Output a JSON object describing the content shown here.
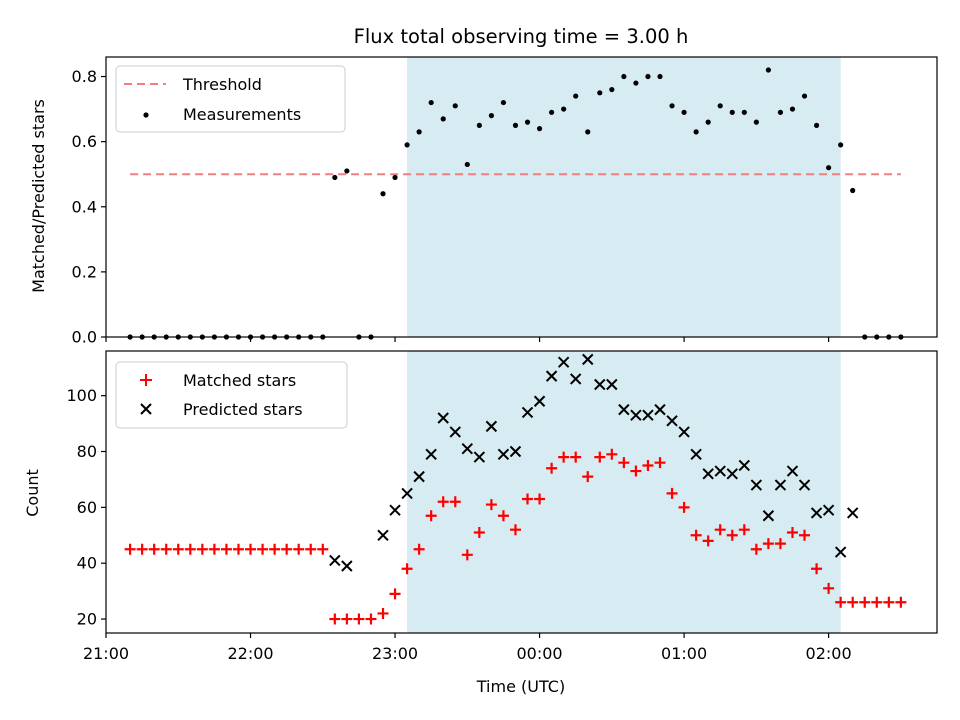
{
  "chart_data": [
    {
      "type": "scatter",
      "title": "Flux total observing time = 3.00 h",
      "ylabel": "Matched/Predicted stars",
      "xlabel": "",
      "x_axis": "time (UTC), labels as HH:MM",
      "xlim": [
        "21:00",
        "02:45"
      ],
      "ylim": [
        0,
        0.86
      ],
      "yticks": [
        "0.0",
        "0.2",
        "0.4",
        "0.6",
        "0.8"
      ],
      "shaded_region": {
        "start": "23:05",
        "end": "02:05",
        "color": "#add8e6"
      },
      "legend": {
        "position": "top-left",
        "entries": [
          "Threshold",
          "Measurements"
        ]
      },
      "threshold": {
        "name": "Threshold",
        "value": 0.5,
        "x_start": "21:10",
        "x_end": "02:30",
        "color": "#f08080"
      },
      "series": [
        {
          "name": "Measurements",
          "color": "#000000",
          "marker": "dot",
          "points": [
            [
              "21:10",
              0
            ],
            [
              "21:15",
              0
            ],
            [
              "21:20",
              0
            ],
            [
              "21:25",
              0
            ],
            [
              "21:30",
              0
            ],
            [
              "21:35",
              0
            ],
            [
              "21:40",
              0
            ],
            [
              "21:45",
              0
            ],
            [
              "21:50",
              0
            ],
            [
              "21:55",
              0
            ],
            [
              "22:00",
              0
            ],
            [
              "22:05",
              0
            ],
            [
              "22:10",
              0
            ],
            [
              "22:15",
              0
            ],
            [
              "22:20",
              0
            ],
            [
              "22:25",
              0
            ],
            [
              "22:30",
              0
            ],
            [
              "22:35",
              0.49
            ],
            [
              "22:40",
              0.51
            ],
            [
              "22:45",
              0
            ],
            [
              "22:50",
              0
            ],
            [
              "22:55",
              0.44
            ],
            [
              "23:00",
              0.49
            ],
            [
              "23:05",
              0.59
            ],
            [
              "23:10",
              0.63
            ],
            [
              "23:15",
              0.72
            ],
            [
              "23:20",
              0.67
            ],
            [
              "23:25",
              0.71
            ],
            [
              "23:30",
              0.53
            ],
            [
              "23:35",
              0.65
            ],
            [
              "23:40",
              0.68
            ],
            [
              "23:45",
              0.72
            ],
            [
              "23:50",
              0.65
            ],
            [
              "23:55",
              0.66
            ],
            [
              "00:00",
              0.64
            ],
            [
              "00:05",
              0.69
            ],
            [
              "00:10",
              0.7
            ],
            [
              "00:15",
              0.74
            ],
            [
              "00:20",
              0.63
            ],
            [
              "00:25",
              0.75
            ],
            [
              "00:30",
              0.76
            ],
            [
              "00:35",
              0.8
            ],
            [
              "00:40",
              0.78
            ],
            [
              "00:45",
              0.8
            ],
            [
              "00:50",
              0.8
            ],
            [
              "00:55",
              0.71
            ],
            [
              "01:00",
              0.69
            ],
            [
              "01:05",
              0.63
            ],
            [
              "01:10",
              0.66
            ],
            [
              "01:15",
              0.71
            ],
            [
              "01:20",
              0.69
            ],
            [
              "01:25",
              0.69
            ],
            [
              "01:30",
              0.66
            ],
            [
              "01:35",
              0.82
            ],
            [
              "01:40",
              0.69
            ],
            [
              "01:45",
              0.7
            ],
            [
              "01:50",
              0.74
            ],
            [
              "01:55",
              0.65
            ],
            [
              "02:00",
              0.52
            ],
            [
              "02:05",
              0.59
            ],
            [
              "02:10",
              0.45
            ],
            [
              "02:15",
              0
            ],
            [
              "02:20",
              0
            ],
            [
              "02:25",
              0
            ],
            [
              "02:30",
              0
            ]
          ]
        }
      ]
    },
    {
      "type": "scatter",
      "title": "",
      "ylabel": "Count",
      "xlabel": "Time (UTC)",
      "x_axis": "time (UTC), labels as HH:MM",
      "xlim": [
        "21:00",
        "02:45"
      ],
      "ylim": [
        15,
        116
      ],
      "yticks": [
        "20",
        "40",
        "60",
        "80",
        "100"
      ],
      "xticks": [
        "21:00",
        "22:00",
        "23:00",
        "00:00",
        "01:00",
        "02:00"
      ],
      "shaded_region": {
        "start": "23:05",
        "end": "02:05",
        "color": "#add8e6"
      },
      "legend": {
        "position": "top-left",
        "entries": [
          "Matched stars",
          "Predicted stars"
        ]
      },
      "series": [
        {
          "name": "Matched stars",
          "color": "#ff0000",
          "marker": "plus",
          "points": [
            [
              "21:10",
              45
            ],
            [
              "21:15",
              45
            ],
            [
              "21:20",
              45
            ],
            [
              "21:25",
              45
            ],
            [
              "21:30",
              45
            ],
            [
              "21:35",
              45
            ],
            [
              "21:40",
              45
            ],
            [
              "21:45",
              45
            ],
            [
              "21:50",
              45
            ],
            [
              "21:55",
              45
            ],
            [
              "22:00",
              45
            ],
            [
              "22:05",
              45
            ],
            [
              "22:10",
              45
            ],
            [
              "22:15",
              45
            ],
            [
              "22:20",
              45
            ],
            [
              "22:25",
              45
            ],
            [
              "22:30",
              45
            ],
            [
              "22:35",
              20
            ],
            [
              "22:40",
              20
            ],
            [
              "22:45",
              20
            ],
            [
              "22:50",
              20
            ],
            [
              "22:55",
              22
            ],
            [
              "23:00",
              29
            ],
            [
              "23:05",
              38
            ],
            [
              "23:10",
              45
            ],
            [
              "23:15",
              57
            ],
            [
              "23:20",
              62
            ],
            [
              "23:25",
              62
            ],
            [
              "23:30",
              43
            ],
            [
              "23:35",
              51
            ],
            [
              "23:40",
              61
            ],
            [
              "23:45",
              57
            ],
            [
              "23:50",
              52
            ],
            [
              "23:55",
              63
            ],
            [
              "00:00",
              63
            ],
            [
              "00:05",
              74
            ],
            [
              "00:10",
              78
            ],
            [
              "00:15",
              78
            ],
            [
              "00:20",
              71
            ],
            [
              "00:25",
              78
            ],
            [
              "00:30",
              79
            ],
            [
              "00:35",
              76
            ],
            [
              "00:40",
              73
            ],
            [
              "00:45",
              75
            ],
            [
              "00:50",
              76
            ],
            [
              "00:55",
              65
            ],
            [
              "01:00",
              60
            ],
            [
              "01:05",
              50
            ],
            [
              "01:10",
              48
            ],
            [
              "01:15",
              52
            ],
            [
              "01:20",
              50
            ],
            [
              "01:25",
              52
            ],
            [
              "01:30",
              45
            ],
            [
              "01:35",
              47
            ],
            [
              "01:40",
              47
            ],
            [
              "01:45",
              51
            ],
            [
              "01:50",
              50
            ],
            [
              "01:55",
              38
            ],
            [
              "02:00",
              31
            ],
            [
              "02:05",
              26
            ],
            [
              "02:10",
              26
            ],
            [
              "02:15",
              26
            ],
            [
              "02:20",
              26
            ],
            [
              "02:25",
              26
            ],
            [
              "02:30",
              26
            ]
          ]
        },
        {
          "name": "Predicted stars",
          "color": "#000000",
          "marker": "x",
          "points": [
            [
              "22:35",
              41
            ],
            [
              "22:40",
              39
            ],
            [
              "22:55",
              50
            ],
            [
              "23:00",
              59
            ],
            [
              "23:05",
              65
            ],
            [
              "23:10",
              71
            ],
            [
              "23:15",
              79
            ],
            [
              "23:20",
              92
            ],
            [
              "23:25",
              87
            ],
            [
              "23:30",
              81
            ],
            [
              "23:35",
              78
            ],
            [
              "23:40",
              89
            ],
            [
              "23:45",
              79
            ],
            [
              "23:50",
              80
            ],
            [
              "23:55",
              94
            ],
            [
              "00:00",
              98
            ],
            [
              "00:05",
              107
            ],
            [
              "00:10",
              112
            ],
            [
              "00:15",
              106
            ],
            [
              "00:20",
              113
            ],
            [
              "00:25",
              104
            ],
            [
              "00:30",
              104
            ],
            [
              "00:35",
              95
            ],
            [
              "00:40",
              93
            ],
            [
              "00:45",
              93
            ],
            [
              "00:50",
              95
            ],
            [
              "00:55",
              91
            ],
            [
              "01:00",
              87
            ],
            [
              "01:05",
              79
            ],
            [
              "01:10",
              72
            ],
            [
              "01:15",
              73
            ],
            [
              "01:20",
              72
            ],
            [
              "01:25",
              75
            ],
            [
              "01:30",
              68
            ],
            [
              "01:35",
              57
            ],
            [
              "01:40",
              68
            ],
            [
              "01:45",
              73
            ],
            [
              "01:50",
              68
            ],
            [
              "01:55",
              58
            ],
            [
              "02:00",
              59
            ],
            [
              "02:05",
              44
            ],
            [
              "02:10",
              58
            ]
          ]
        }
      ]
    }
  ]
}
